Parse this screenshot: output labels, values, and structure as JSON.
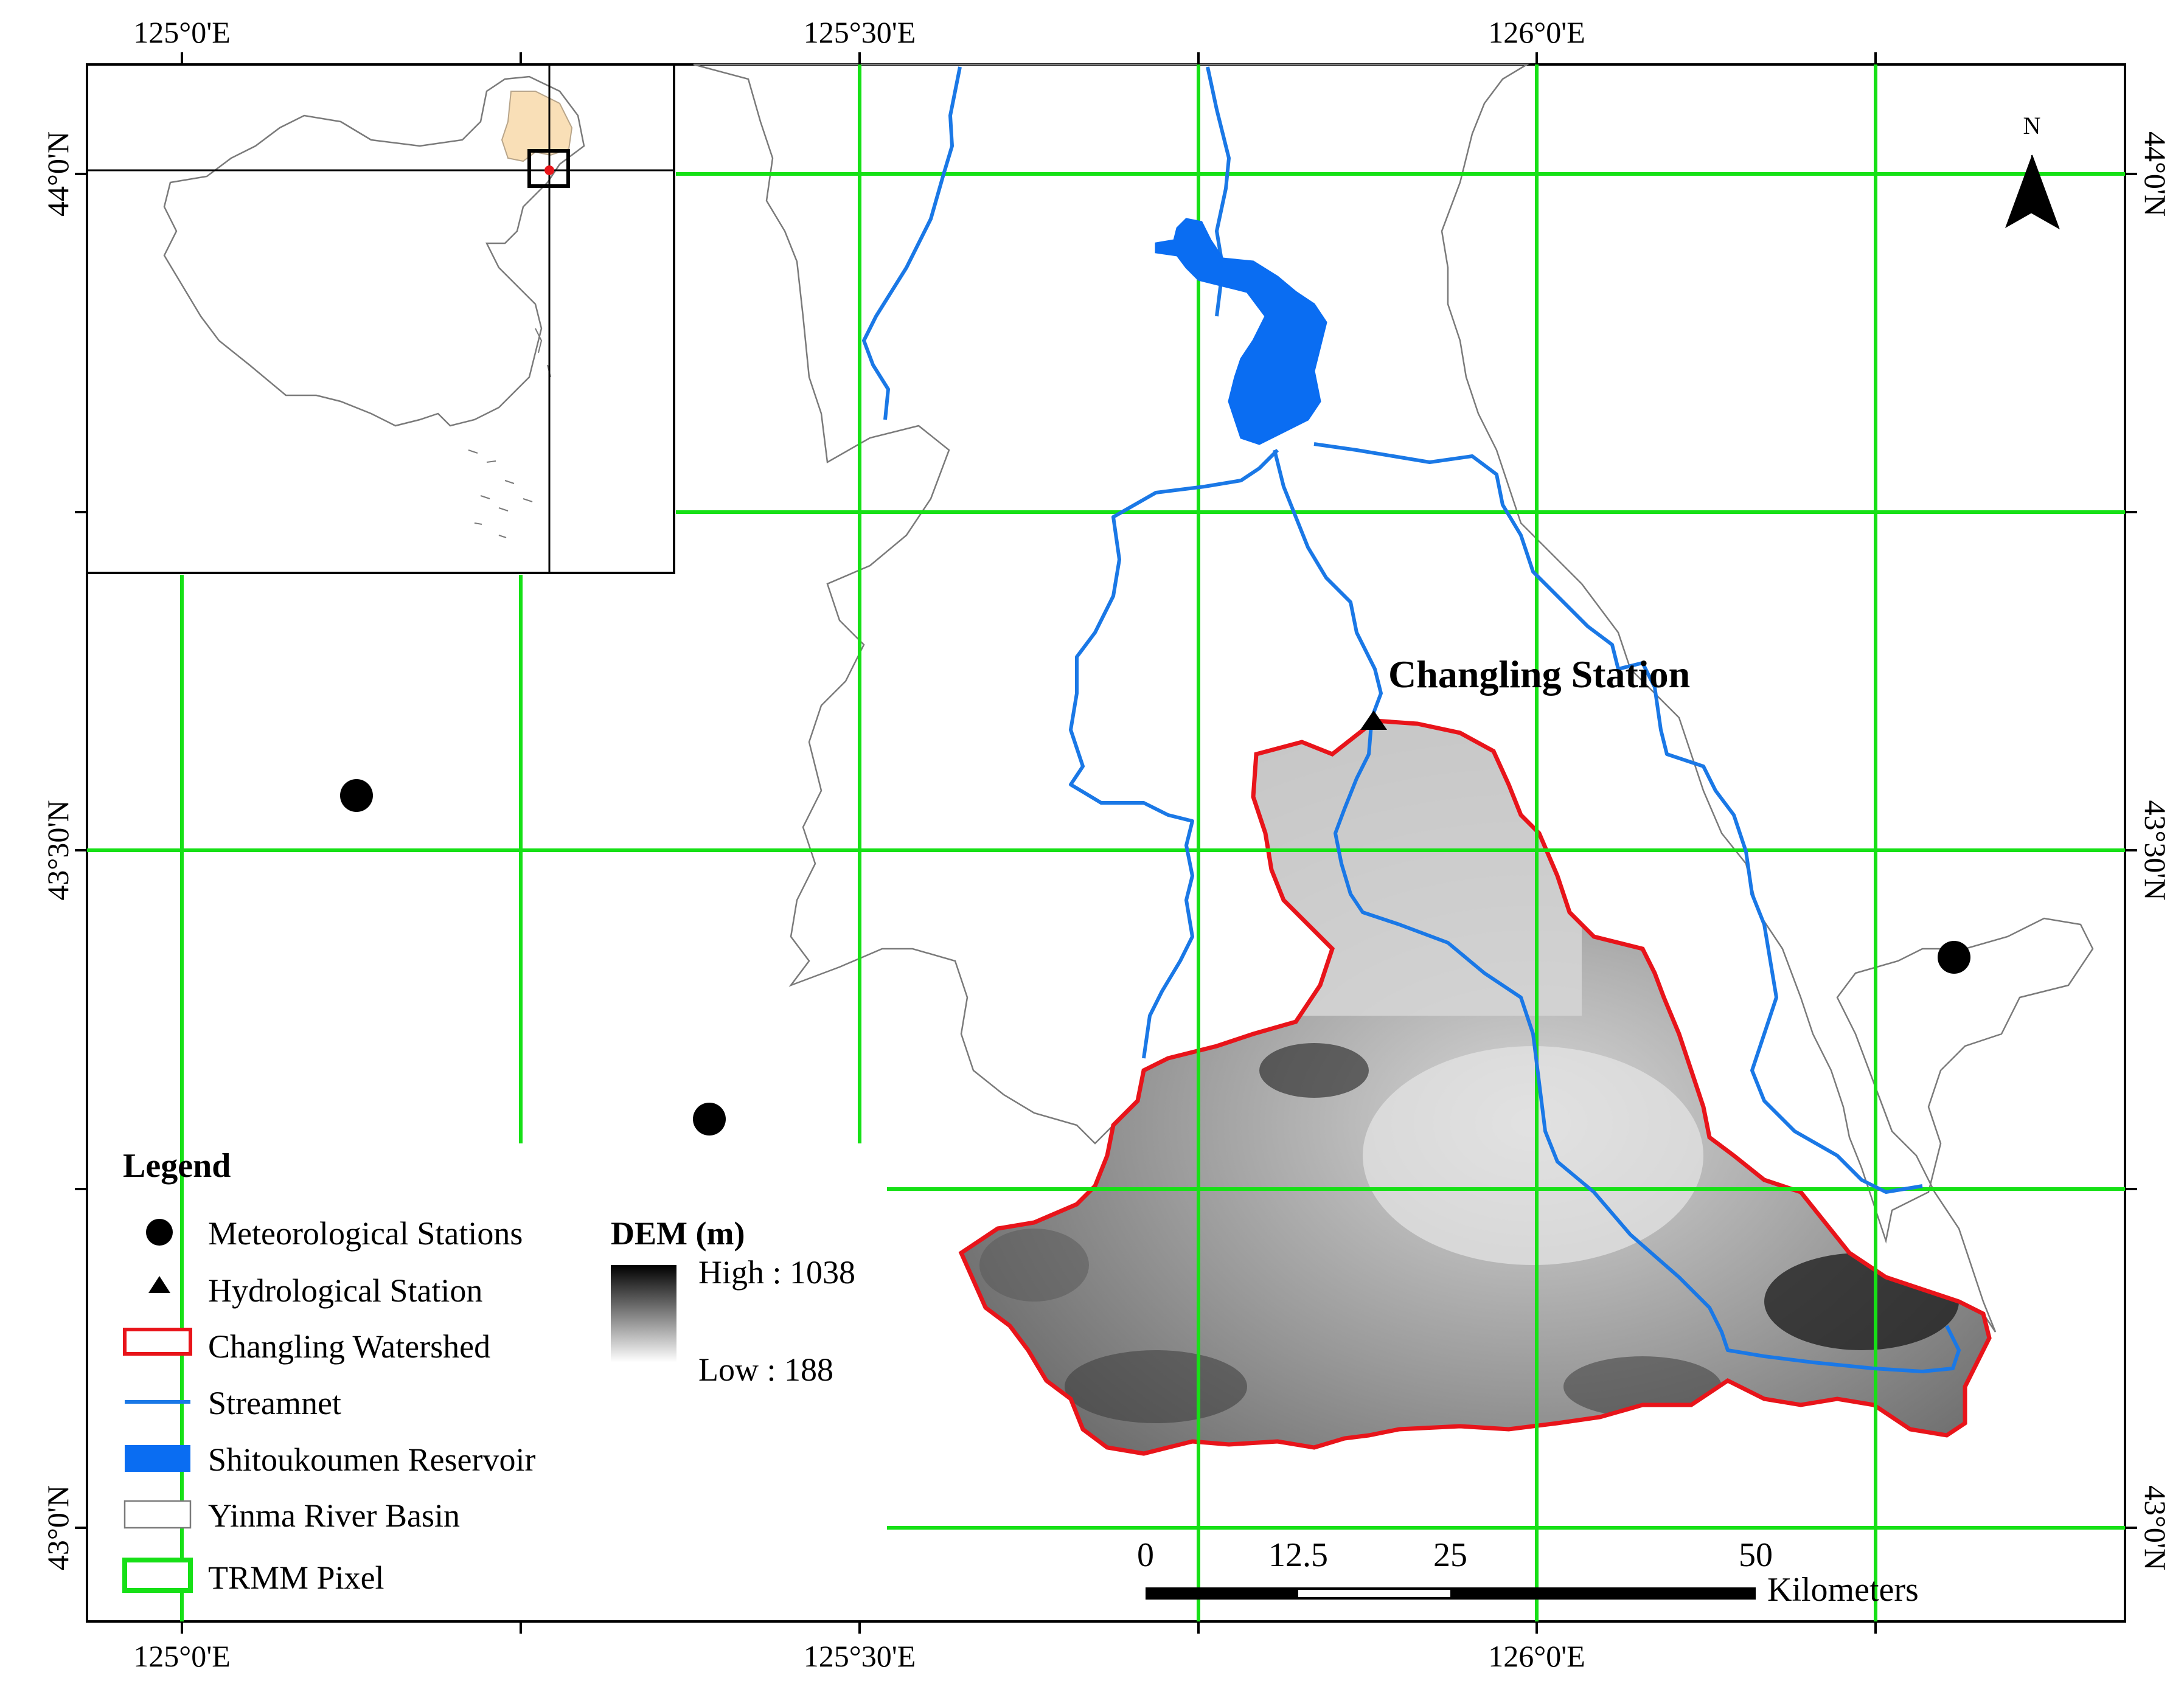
{
  "map": {
    "graticule": {
      "top_labels": [
        "125°0'E",
        "125°30'E",
        "126°0'E"
      ],
      "bottom_labels": [
        "125°0'E",
        "125°30'E",
        "126°0'E"
      ],
      "left_labels": [
        "44°0'N",
        "43°30'N",
        "43°0'N"
      ],
      "right_labels": [
        "44°0'N",
        "43°30'N",
        "43°0'N"
      ]
    },
    "north_arrow": {
      "label": "N"
    },
    "station_label": "Changling Station",
    "scale_bar": {
      "ticks": [
        "0",
        "12.5",
        "25",
        "50"
      ],
      "unit": "Kilometers"
    },
    "legend": {
      "title": "Legend",
      "items": [
        {
          "label": "Meteorological Stations",
          "symbol": "circle"
        },
        {
          "label": "Hydrological Station",
          "symbol": "triangle"
        },
        {
          "label": "Changling Watershed",
          "symbol": "red-outline"
        },
        {
          "label": "Streamnet",
          "symbol": "blue-line"
        },
        {
          "label": "Shitoukoumen Reservoir",
          "symbol": "blue-fill"
        },
        {
          "label": "Yinma River Basin",
          "symbol": "gray-outline"
        },
        {
          "label": "TRMM Pixel",
          "symbol": "green-outline"
        }
      ],
      "dem": {
        "title": "DEM (m)",
        "high_label": "High : 1038",
        "low_label": "Low : 188"
      }
    },
    "colors": {
      "trmm_grid": "#16e016",
      "watershed": "#e8141a",
      "streams": "#1a78e6",
      "reservoir": "#0a6df2",
      "basin": "#7a7a7a",
      "inset_province": "#f9dfb7"
    }
  }
}
